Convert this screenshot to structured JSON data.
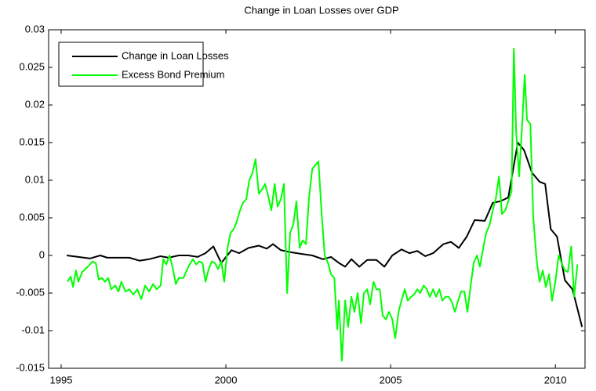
{
  "chart_data": {
    "type": "line",
    "title": "Change in Loan Losses over GDP",
    "xlim": [
      1994.62,
      2010.9
    ],
    "xticks": [
      1995,
      2000,
      2005,
      2010
    ],
    "ylim": [
      -0.015,
      0.03
    ],
    "yticks": [
      -0.015,
      -0.01,
      -0.005,
      0,
      0.005,
      0.01,
      0.015,
      0.02,
      0.025,
      0.03
    ],
    "legend": "upper left",
    "series": [
      {
        "name": "Change in Loan Losses",
        "color": "#000000",
        "x": [
          1995.17,
          1995.52,
          1995.88,
          1996.19,
          1996.4,
          1996.71,
          1997.07,
          1997.38,
          1997.67,
          1998.02,
          1998.26,
          1998.57,
          1998.86,
          1999.14,
          1999.38,
          1999.62,
          1999.86,
          2000.17,
          2000.4,
          2000.69,
          2001.0,
          2001.24,
          2001.43,
          2001.67,
          2002.0,
          2002.31,
          2002.62,
          2002.95,
          2003.19,
          2003.43,
          2003.62,
          2003.81,
          2004.05,
          2004.29,
          2004.57,
          2004.81,
          2005.05,
          2005.33,
          2005.57,
          2005.81,
          2006.05,
          2006.29,
          2006.6,
          2006.83,
          2007.07,
          2007.31,
          2007.55,
          2007.86,
          2008.1,
          2008.33,
          2008.57,
          2008.86,
          2009.05,
          2009.29,
          2009.52,
          2009.69,
          2009.86,
          2010.05,
          2010.29,
          2010.52,
          2010.81
        ],
        "values": [
          0,
          -0.0002,
          -0.0004,
          0,
          -0.0003,
          -0.0003,
          -0.0003,
          -0.0007,
          -0.0005,
          -0.0001,
          -0.0003,
          0,
          0,
          -0.0002,
          0.0003,
          0.0012,
          -0.001,
          0.0007,
          0.0003,
          0.001,
          0.0013,
          0.0009,
          0.0015,
          0.0007,
          0.0004,
          0.0002,
          0,
          -0.0005,
          -0.0002,
          -0.001,
          -0.0015,
          -0.0005,
          -0.0015,
          -0.0006,
          -0.0006,
          -0.0015,
          0,
          0.0008,
          0.0003,
          0.0006,
          -0.0001,
          0.0003,
          0.0015,
          0.0018,
          0.001,
          0.0025,
          0.0047,
          0.0046,
          0.007,
          0.0072,
          0.0077,
          0.015,
          0.014,
          0.011,
          0.0098,
          0.0095,
          0.0035,
          0.0025,
          -0.0033,
          -0.0045,
          -0.0095
        ]
      },
      {
        "name": "Excess Bond Premium",
        "color": "#00ff00",
        "x": [
          1995.19,
          1995.29,
          1995.36,
          1995.45,
          1995.52,
          1995.64,
          1995.81,
          1995.95,
          1996.05,
          1996.14,
          1996.24,
          1996.33,
          1996.43,
          1996.52,
          1996.64,
          1996.74,
          1996.83,
          1996.95,
          1997.07,
          1997.19,
          1997.31,
          1997.43,
          1997.55,
          1997.67,
          1997.79,
          1997.9,
          1998.02,
          1998.1,
          1998.19,
          1998.29,
          1998.38,
          1998.48,
          1998.57,
          1998.71,
          1998.86,
          1999.0,
          1999.1,
          1999.19,
          1999.29,
          1999.38,
          1999.48,
          1999.57,
          1999.67,
          1999.76,
          1999.86,
          1999.95,
          2000.05,
          2000.14,
          2000.24,
          2000.33,
          2000.43,
          2000.52,
          2000.62,
          2000.71,
          2000.81,
          2000.9,
          2001.0,
          2001.1,
          2001.19,
          2001.29,
          2001.38,
          2001.48,
          2001.57,
          2001.67,
          2001.76,
          2001.86,
          2001.95,
          2002.05,
          2002.14,
          2002.24,
          2002.33,
          2002.43,
          2002.52,
          2002.62,
          2002.71,
          2002.81,
          2002.9,
          2003.0,
          2003.1,
          2003.19,
          2003.29,
          2003.38,
          2003.43,
          2003.52,
          2003.62,
          2003.71,
          2003.81,
          2003.9,
          2004.0,
          2004.1,
          2004.19,
          2004.29,
          2004.38,
          2004.48,
          2004.57,
          2004.67,
          2004.76,
          2004.86,
          2004.95,
          2005.05,
          2005.14,
          2005.24,
          2005.33,
          2005.43,
          2005.52,
          2005.62,
          2005.71,
          2005.81,
          2005.9,
          2006.0,
          2006.1,
          2006.19,
          2006.29,
          2006.38,
          2006.48,
          2006.57,
          2006.67,
          2006.76,
          2006.86,
          2006.95,
          2007.05,
          2007.14,
          2007.24,
          2007.33,
          2007.43,
          2007.52,
          2007.62,
          2007.71,
          2007.81,
          2007.9,
          2008.0,
          2008.1,
          2008.19,
          2008.29,
          2008.38,
          2008.48,
          2008.57,
          2008.67,
          2008.74,
          2008.81,
          2008.9,
          2009.0,
          2009.07,
          2009.14,
          2009.24,
          2009.33,
          2009.43,
          2009.52,
          2009.62,
          2009.71,
          2009.81,
          2009.9,
          2010.0,
          2010.1,
          2010.19,
          2010.29,
          2010.38,
          2010.48,
          2010.57,
          2010.67
        ],
        "values": [
          -0.0035,
          -0.0028,
          -0.0042,
          -0.002,
          -0.0035,
          -0.0022,
          -0.0015,
          -0.0008,
          -0.001,
          -0.0032,
          -0.003,
          -0.0035,
          -0.003,
          -0.0045,
          -0.004,
          -0.0048,
          -0.0035,
          -0.0048,
          -0.0045,
          -0.0052,
          -0.0045,
          -0.0058,
          -0.004,
          -0.0048,
          -0.0038,
          -0.0045,
          -0.004,
          -0.0005,
          -0.0012,
          0,
          -0.0015,
          -0.0038,
          -0.003,
          -0.003,
          -0.0015,
          -0.0005,
          -0.0012,
          -0.0008,
          -0.001,
          -0.0035,
          -0.0018,
          -0.0008,
          -0.001,
          -0.0018,
          -0.0008,
          -0.0035,
          0.001,
          0.003,
          0.0035,
          0.0045,
          0.006,
          0.007,
          0.0075,
          0.01,
          0.011,
          0.0128,
          0.0082,
          0.0088,
          0.0095,
          0.0078,
          0.006,
          0.0095,
          0.0065,
          0.0075,
          0.0095,
          -0.005,
          0.003,
          0.0042,
          0.0072,
          0.001,
          0.002,
          0.0015,
          0.0075,
          0.0115,
          0.012,
          0.0125,
          0.006,
          0,
          -0.001,
          -0.0025,
          -0.003,
          -0.0098,
          -0.006,
          -0.014,
          -0.006,
          -0.0095,
          -0.0055,
          -0.0075,
          -0.005,
          -0.009,
          -0.005,
          -0.0045,
          -0.0065,
          -0.0035,
          -0.0045,
          -0.0045,
          -0.008,
          -0.0085,
          -0.0075,
          -0.0085,
          -0.011,
          -0.0075,
          -0.006,
          -0.0045,
          -0.006,
          -0.0055,
          -0.0052,
          -0.0045,
          -0.005,
          -0.004,
          -0.0045,
          -0.0055,
          -0.0045,
          -0.0055,
          -0.0045,
          -0.006,
          -0.0055,
          -0.0055,
          -0.0062,
          -0.0075,
          -0.006,
          -0.0048,
          -0.0048,
          -0.0075,
          -0.004,
          -0.001,
          0,
          -0.0015,
          0.001,
          0.003,
          0.004,
          0.006,
          0.0075,
          0.0105,
          0.0055,
          0.006,
          0.0072,
          0.0085,
          0.0275,
          0.0165,
          0.0105,
          0.018,
          0.024,
          0.018,
          0.0175,
          0.005,
          -0.0005,
          -0.0035,
          -0.002,
          -0.0042,
          -0.0025,
          -0.006,
          -0.0035,
          0,
          -0.001,
          -0.002,
          -0.0022,
          0.0012,
          -0.0055,
          -0.0012
        ]
      }
    ]
  }
}
